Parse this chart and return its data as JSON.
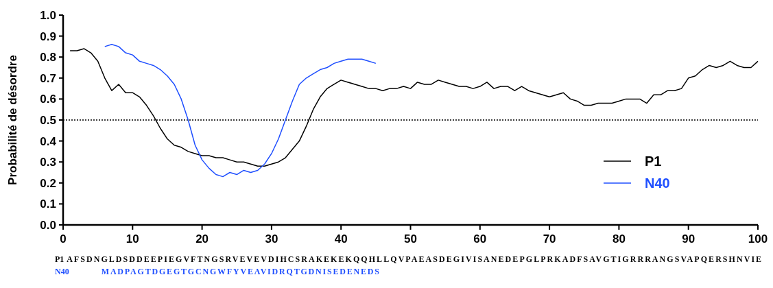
{
  "chart_data": {
    "type": "line",
    "ylabel": "Probabilité de désordre",
    "xlim": [
      0,
      100
    ],
    "xticks": [
      0,
      10,
      20,
      30,
      40,
      50,
      60,
      70,
      80,
      90,
      100
    ],
    "ylim": [
      0,
      1
    ],
    "yticks": [
      {
        "value": 0,
        "label": "0.0"
      },
      0.1,
      0.2,
      0.3,
      0.4,
      0.5,
      0.6,
      0.7,
      0.8,
      0.9,
      {
        "value": 1,
        "label": "1.0"
      }
    ],
    "grid": false,
    "legend": "right",
    "marker": "none",
    "line_style": "solid",
    "ref_lines": [
      {
        "axis": "y",
        "value": 0.5,
        "line_style": "dotted",
        "color": "#000000"
      }
    ],
    "series": [
      {
        "name": "P1",
        "color": "#000000",
        "x": [
          1,
          2,
          3,
          4,
          5,
          6,
          7,
          8,
          9,
          10,
          11,
          12,
          13,
          14,
          15,
          16,
          17,
          18,
          19,
          20,
          21,
          22,
          23,
          24,
          25,
          26,
          27,
          28,
          29,
          30,
          31,
          32,
          33,
          34,
          35,
          36,
          37,
          38,
          39,
          40,
          41,
          42,
          43,
          44,
          45,
          46,
          47,
          48,
          49,
          50,
          51,
          52,
          53,
          54,
          55,
          56,
          57,
          58,
          59,
          60,
          61,
          62,
          63,
          64,
          65,
          66,
          67,
          68,
          69,
          70,
          71,
          72,
          73,
          74,
          75,
          76,
          77,
          78,
          79,
          80,
          81,
          82,
          83,
          84,
          85,
          86,
          87,
          88,
          89,
          90,
          91,
          92,
          93,
          94,
          95,
          96,
          97,
          98,
          99,
          100
        ],
        "values": [
          0.83,
          0.83,
          0.84,
          0.82,
          0.78,
          0.7,
          0.64,
          0.67,
          0.63,
          0.63,
          0.61,
          0.57,
          0.52,
          0.46,
          0.41,
          0.38,
          0.37,
          0.35,
          0.34,
          0.33,
          0.33,
          0.32,
          0.32,
          0.31,
          0.3,
          0.3,
          0.29,
          0.28,
          0.28,
          0.29,
          0.3,
          0.32,
          0.36,
          0.4,
          0.47,
          0.55,
          0.61,
          0.65,
          0.67,
          0.69,
          0.68,
          0.67,
          0.66,
          0.65,
          0.65,
          0.64,
          0.65,
          0.65,
          0.66,
          0.65,
          0.68,
          0.67,
          0.67,
          0.69,
          0.68,
          0.67,
          0.66,
          0.66,
          0.65,
          0.66,
          0.68,
          0.65,
          0.66,
          0.66,
          0.64,
          0.66,
          0.64,
          0.63,
          0.62,
          0.61,
          0.62,
          0.63,
          0.6,
          0.59,
          0.57,
          0.57,
          0.58,
          0.58,
          0.58,
          0.59,
          0.6,
          0.6,
          0.6,
          0.58,
          0.62,
          0.62,
          0.64,
          0.64,
          0.65,
          0.7,
          0.71,
          0.74,
          0.76,
          0.75,
          0.76,
          0.78,
          0.76,
          0.75,
          0.75,
          0.78
        ]
      },
      {
        "name": "N40",
        "color": "#1f4fff",
        "x": [
          6,
          7,
          8,
          9,
          10,
          11,
          12,
          13,
          14,
          15,
          16,
          17,
          18,
          19,
          20,
          21,
          22,
          23,
          24,
          25,
          26,
          27,
          28,
          29,
          30,
          31,
          32,
          33,
          34,
          35,
          36,
          37,
          38,
          39,
          40,
          41,
          42,
          43,
          44,
          45
        ],
        "values": [
          0.85,
          0.86,
          0.85,
          0.82,
          0.81,
          0.78,
          0.77,
          0.76,
          0.74,
          0.71,
          0.67,
          0.6,
          0.5,
          0.38,
          0.31,
          0.27,
          0.24,
          0.23,
          0.25,
          0.24,
          0.26,
          0.25,
          0.26,
          0.29,
          0.34,
          0.41,
          0.5,
          0.59,
          0.67,
          0.7,
          0.72,
          0.74,
          0.75,
          0.77,
          0.78,
          0.79,
          0.79,
          0.79,
          0.78,
          0.77
        ]
      }
    ],
    "annotations": [
      "AFSDNGLDSDDEEPIEGVFTNGSRVEVEVDIHCSRAKEKEKQQHLLQVPAEASDEGIVISANEDEPGLPRKADFSAVGTIGRRRANGSVAPQERSHNVIE",
      "MADPAGTDGEGTGCNGWFYVEAVIDRQTGDNISEDENEDS"
    ]
  }
}
